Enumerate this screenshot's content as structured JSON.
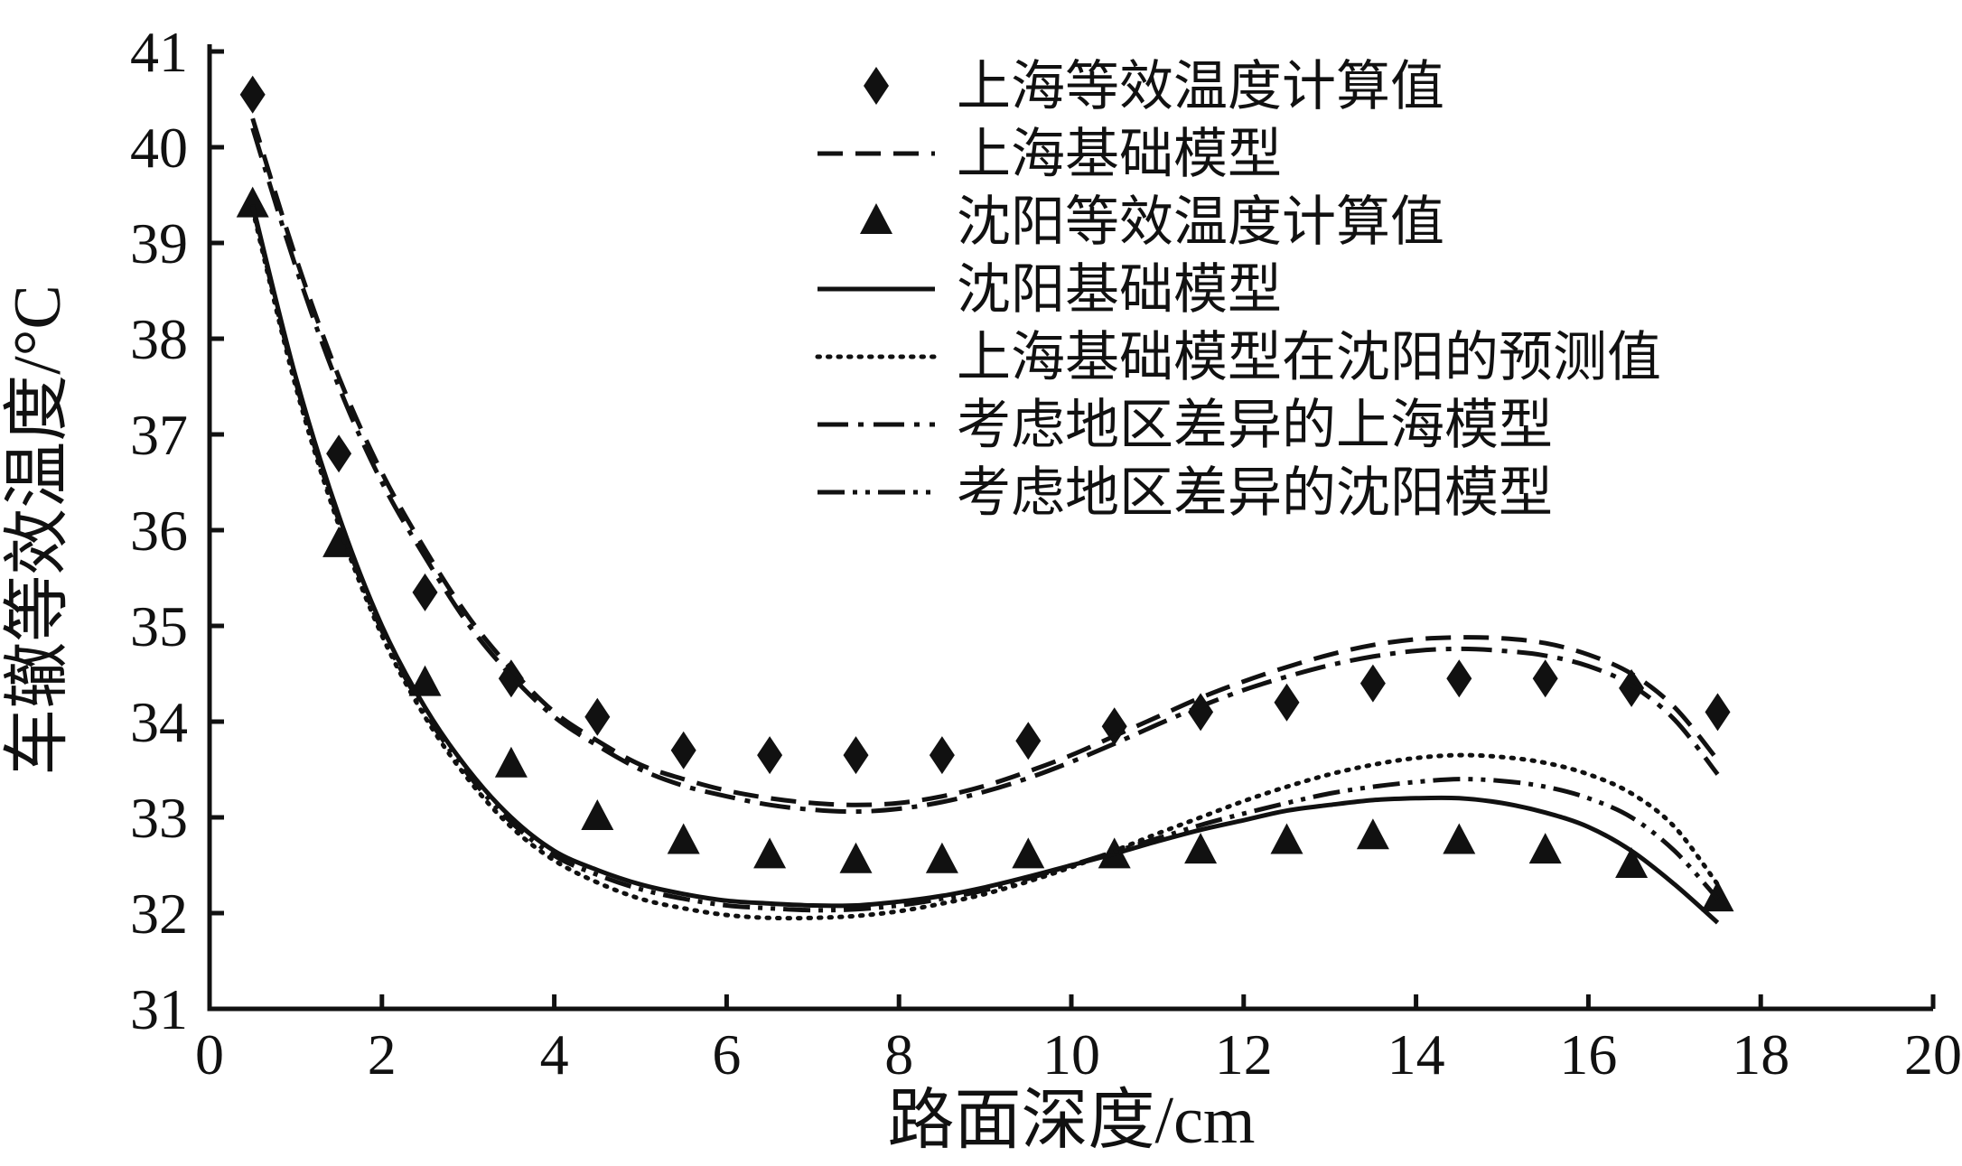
{
  "figure": {
    "background": "#ffffff",
    "ink": "#111111"
  },
  "chart_data": {
    "type": "line",
    "title": "",
    "xlabel": "路面深度/cm",
    "ylabel": "车辙等效温度/°C",
    "xlim": [
      0,
      20
    ],
    "ylim": [
      31,
      41
    ],
    "xticks": [
      0,
      2,
      4,
      6,
      8,
      10,
      12,
      14,
      16,
      18,
      20
    ],
    "yticks": [
      31,
      32,
      33,
      34,
      35,
      36,
      37,
      38,
      39,
      40,
      41
    ],
    "grid": false,
    "legend_position": "inside-top-right",
    "series": [
      {
        "name": "上海等效温度计算值",
        "kind": "scatter",
        "marker": "diamond",
        "x": [
          0.5,
          1.5,
          2.5,
          3.5,
          4.5,
          5.5,
          6.5,
          7.5,
          8.5,
          9.5,
          10.5,
          11.5,
          12.5,
          13.5,
          14.5,
          15.5,
          16.5,
          17.5
        ],
        "y": [
          40.55,
          36.8,
          35.35,
          34.45,
          34.05,
          33.7,
          33.65,
          33.65,
          33.65,
          33.8,
          33.95,
          34.1,
          34.2,
          34.4,
          34.45,
          34.45,
          34.35,
          34.1
        ]
      },
      {
        "name": "上海基础模型",
        "kind": "line",
        "line_style": "dashed",
        "x": [
          0.5,
          1,
          1.5,
          2,
          2.5,
          3,
          3.5,
          4,
          4.5,
          5,
          5.5,
          6,
          6.5,
          7,
          7.5,
          8,
          8.5,
          9,
          9.5,
          10,
          10.5,
          11,
          11.5,
          12,
          12.5,
          13,
          13.5,
          14,
          14.5,
          15,
          15.5,
          16,
          16.5,
          17,
          17.5
        ],
        "y": [
          40.3,
          38.85,
          37.6,
          36.6,
          35.8,
          35.1,
          34.55,
          34.1,
          33.8,
          33.55,
          33.4,
          33.28,
          33.2,
          33.15,
          33.13,
          33.15,
          33.22,
          33.33,
          33.48,
          33.65,
          33.85,
          34.05,
          34.25,
          34.42,
          34.57,
          34.7,
          34.8,
          34.86,
          34.88,
          34.87,
          34.82,
          34.7,
          34.5,
          34.15,
          33.6
        ]
      },
      {
        "name": "沈阳等效温度计算值",
        "kind": "scatter",
        "marker": "triangle",
        "x": [
          0.5,
          1.5,
          2.5,
          3.5,
          4.5,
          5.5,
          6.5,
          7.5,
          8.5,
          9.5,
          10.5,
          11.5,
          12.5,
          13.5,
          14.5,
          15.5,
          16.5,
          17.5
        ],
        "y": [
          39.4,
          35.85,
          34.4,
          33.55,
          33.0,
          32.75,
          32.6,
          32.55,
          32.55,
          32.6,
          32.6,
          32.65,
          32.75,
          32.8,
          32.75,
          32.65,
          32.5,
          32.15
        ]
      },
      {
        "name": "沈阳基础模型",
        "kind": "line",
        "line_style": "solid",
        "x": [
          0.5,
          1,
          1.5,
          2,
          2.5,
          3,
          3.5,
          4,
          4.5,
          5,
          5.5,
          6,
          6.5,
          7,
          7.5,
          8,
          8.5,
          9,
          9.5,
          10,
          10.5,
          11,
          11.5,
          12,
          12.5,
          13,
          13.5,
          14,
          14.5,
          15,
          15.5,
          16,
          16.5,
          17,
          17.5
        ],
        "y": [
          39.4,
          37.6,
          36.15,
          35.0,
          34.15,
          33.5,
          33.0,
          32.65,
          32.45,
          32.3,
          32.2,
          32.13,
          32.1,
          32.08,
          32.08,
          32.12,
          32.18,
          32.27,
          32.38,
          32.5,
          32.62,
          32.75,
          32.87,
          32.97,
          33.07,
          33.13,
          33.18,
          33.2,
          33.2,
          33.15,
          33.05,
          32.9,
          32.65,
          32.3,
          31.9
        ]
      },
      {
        "name": "上海基础模型在沈阳的预测值",
        "kind": "line",
        "line_style": "dotted",
        "x": [
          0.5,
          1,
          1.5,
          2,
          2.5,
          3,
          3.5,
          4,
          4.5,
          5,
          5.5,
          6,
          6.5,
          7,
          7.5,
          8,
          8.5,
          9,
          9.5,
          10,
          10.5,
          11,
          11.5,
          12,
          12.5,
          13,
          13.5,
          14,
          14.5,
          15,
          15.5,
          16,
          16.5,
          17,
          17.5
        ],
        "y": [
          39.35,
          37.5,
          36.05,
          34.9,
          34.05,
          33.4,
          32.9,
          32.55,
          32.32,
          32.15,
          32.05,
          31.98,
          31.95,
          31.95,
          31.97,
          32.02,
          32.1,
          32.2,
          32.33,
          32.48,
          32.65,
          32.83,
          33.0,
          33.17,
          33.32,
          33.45,
          33.55,
          33.62,
          33.65,
          33.63,
          33.57,
          33.45,
          33.25,
          32.9,
          32.3
        ]
      },
      {
        "name": "考虑地区差异的上海模型",
        "kind": "line",
        "line_style": "dashdot",
        "x": [
          0.5,
          1,
          1.5,
          2,
          2.5,
          3,
          3.5,
          4,
          4.5,
          5,
          5.5,
          6,
          6.5,
          7,
          7.5,
          8,
          8.5,
          9,
          9.5,
          10,
          10.5,
          11,
          11.5,
          12,
          12.5,
          13,
          13.5,
          14,
          14.5,
          15,
          15.5,
          16,
          16.5,
          17,
          17.5
        ],
        "y": [
          40.2,
          38.75,
          37.5,
          36.5,
          35.72,
          35.02,
          34.48,
          34.05,
          33.75,
          33.5,
          33.33,
          33.22,
          33.13,
          33.08,
          33.06,
          33.09,
          33.16,
          33.27,
          33.41,
          33.58,
          33.77,
          33.97,
          34.16,
          34.33,
          34.47,
          34.59,
          34.68,
          34.74,
          34.76,
          34.74,
          34.69,
          34.58,
          34.38,
          34.02,
          33.45
        ]
      },
      {
        "name": "考虑地区差异的沈阳模型",
        "kind": "line",
        "line_style": "dashdotdot",
        "x": [
          0.5,
          1,
          1.5,
          2,
          2.5,
          3,
          3.5,
          4,
          4.5,
          5,
          5.5,
          6,
          6.5,
          7,
          7.5,
          8,
          8.5,
          9,
          9.5,
          10,
          10.5,
          11,
          11.5,
          12,
          12.5,
          13,
          13.5,
          14,
          14.5,
          15,
          15.5,
          16,
          16.5,
          17,
          17.5
        ],
        "y": [
          39.38,
          37.55,
          36.1,
          34.95,
          34.1,
          33.45,
          32.95,
          32.6,
          32.4,
          32.25,
          32.15,
          32.08,
          32.05,
          32.03,
          32.04,
          32.08,
          32.15,
          32.24,
          32.36,
          32.5,
          32.64,
          32.78,
          32.92,
          33.04,
          33.15,
          33.25,
          33.32,
          33.37,
          33.4,
          33.38,
          33.32,
          33.2,
          33.0,
          32.65,
          32.15
        ]
      }
    ]
  }
}
